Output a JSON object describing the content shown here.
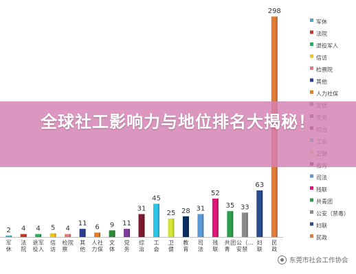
{
  "banner": {
    "title": "全球社工影响力与地位排名大揭秘！"
  },
  "watermark": {
    "text": "东莞市社会工作协会",
    "icon": "wechat-icon"
  },
  "chart_data": {
    "type": "bar",
    "title": "",
    "xlabel": "",
    "ylabel": "",
    "ylim": [
      0,
      300
    ],
    "grid": false,
    "legend": "right",
    "categories": [
      "军休",
      "法院",
      "退役军人",
      "信访",
      "检察院",
      "其他",
      "人力社保",
      "文体",
      "党务",
      "综治",
      "工会",
      "卫健",
      "教育",
      "司法",
      "残联",
      "共青团",
      "公安（禁毒）",
      "妇联",
      "民政"
    ],
    "axis_labels": [
      "军休",
      "法院",
      "退役军人",
      "信访",
      "检察院",
      "其他",
      "人力社保",
      "文体",
      "党务",
      "综治",
      "工会",
      "卫健",
      "教育",
      "司法",
      "残联",
      "共青团",
      "公安（禁…",
      "妇联",
      "民政"
    ],
    "values": [
      2,
      4,
      4,
      5,
      4,
      11,
      6,
      9,
      11,
      31,
      45,
      25,
      28,
      31,
      52,
      35,
      33,
      63,
      298
    ],
    "colors": [
      "#4bacc6",
      "#c0392b",
      "#27ae60",
      "#f1c40f",
      "#e17a7a",
      "#2c3e91",
      "#e67e22",
      "#2e8b3a",
      "#7d3c98",
      "#7b1a2e",
      "#29c5e6",
      "#d4e53a",
      "#0b2c5e",
      "#5b9bd5",
      "#e0157a",
      "#2e9e4c",
      "#8a8a8a",
      "#2a4d8f",
      "#e07b39"
    ]
  }
}
